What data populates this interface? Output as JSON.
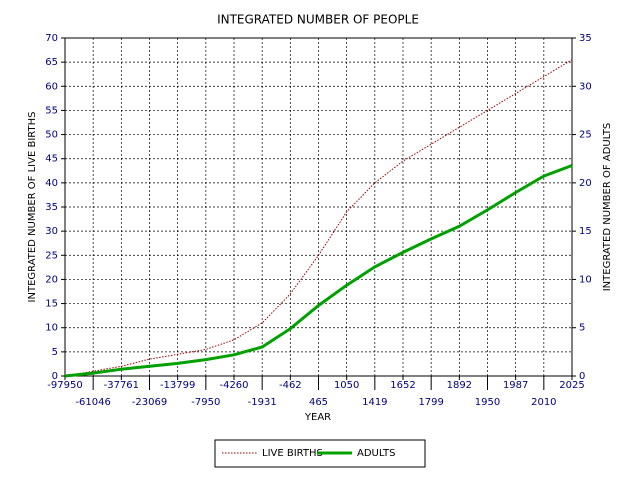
{
  "chart_data": {
    "type": "line",
    "title": "INTEGRATED NUMBER OF PEOPLE",
    "x_label": "YEAR",
    "y_label": "INTEGRATED NUMBER OF LIVE BIRTHS",
    "y2_label": "INTEGRATED NUMBER OF ADULTS",
    "categories": [
      "-97950",
      "-61046",
      "-37761",
      "-23069",
      "-13799",
      "-7950",
      "-4260",
      "-1931",
      "-462",
      "465",
      "1050",
      "1419",
      "1652",
      "1799",
      "1892",
      "1950",
      "1987",
      "2010",
      "2025"
    ],
    "series": [
      {
        "name": "LIVE BIRTHS",
        "color": "#a00000",
        "style": "dotted",
        "values": [
          0,
          1,
          2,
          3.5,
          4.5,
          5.5,
          7.5,
          11,
          17,
          25,
          34,
          40,
          44.5,
          48,
          51.5,
          55,
          58.5,
          62,
          65.5
        ]
      },
      {
        "name": "ADULTS",
        "color": "#00a000",
        "style": "solid",
        "axis": "y2",
        "values": [
          0,
          0.3,
          0.7,
          1,
          1.3,
          1.7,
          2.2,
          3,
          4.9,
          7.3,
          9.4,
          11.3,
          12.8,
          14.2,
          15.5,
          17.2,
          19,
          20.7,
          21.8
        ]
      }
    ],
    "ylim": [
      0,
      70
    ],
    "yticks": [
      0,
      5,
      10,
      15,
      20,
      25,
      30,
      35,
      40,
      45,
      50,
      55,
      60,
      65,
      70
    ],
    "y2lim": [
      0,
      35
    ],
    "y2ticks": [
      0,
      5,
      10,
      15,
      20,
      25,
      30,
      35
    ],
    "grid": true
  }
}
